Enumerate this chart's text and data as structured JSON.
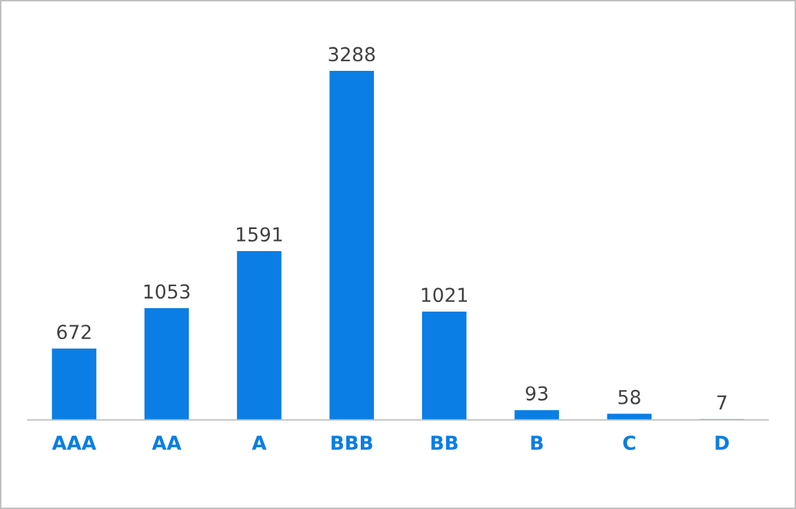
{
  "chart_data": {
    "type": "bar",
    "categories": [
      "AAA",
      "AA",
      "A",
      "BBB",
      "BB",
      "B",
      "C",
      "D"
    ],
    "values": [
      672,
      1053,
      1591,
      3288,
      1021,
      93,
      58,
      7
    ],
    "color": "#0a7ee4",
    "data_labels": true,
    "grid": false,
    "legend": false
  }
}
